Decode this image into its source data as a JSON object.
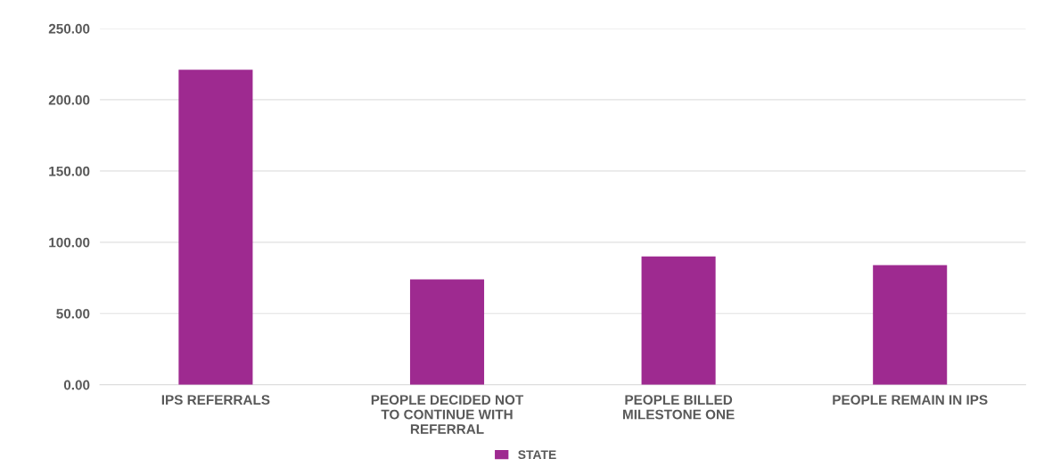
{
  "chart_data": {
    "type": "bar",
    "categories": [
      "IPS REFERRALS",
      "PEOPLE DECIDED NOT\nTO CONTINUE WITH\nREFERRAL",
      "PEOPLE BILLED\nMILESTONE ONE",
      "PEOPLE REMAIN IN IPS"
    ],
    "series": [
      {
        "name": "STATE",
        "color": "#9e2a90",
        "values": [
          221,
          74,
          90,
          84
        ]
      }
    ],
    "ylim": [
      0,
      250
    ],
    "yticks": [
      {
        "value": 0,
        "label": "0.00"
      },
      {
        "value": 50,
        "label": "50.00"
      },
      {
        "value": 100,
        "label": "100.00"
      },
      {
        "value": 150,
        "label": "150.00"
      },
      {
        "value": 200,
        "label": "200.00"
      },
      {
        "value": 250,
        "label": "250.00"
      }
    ],
    "grid": "y",
    "legend": "bottom"
  }
}
